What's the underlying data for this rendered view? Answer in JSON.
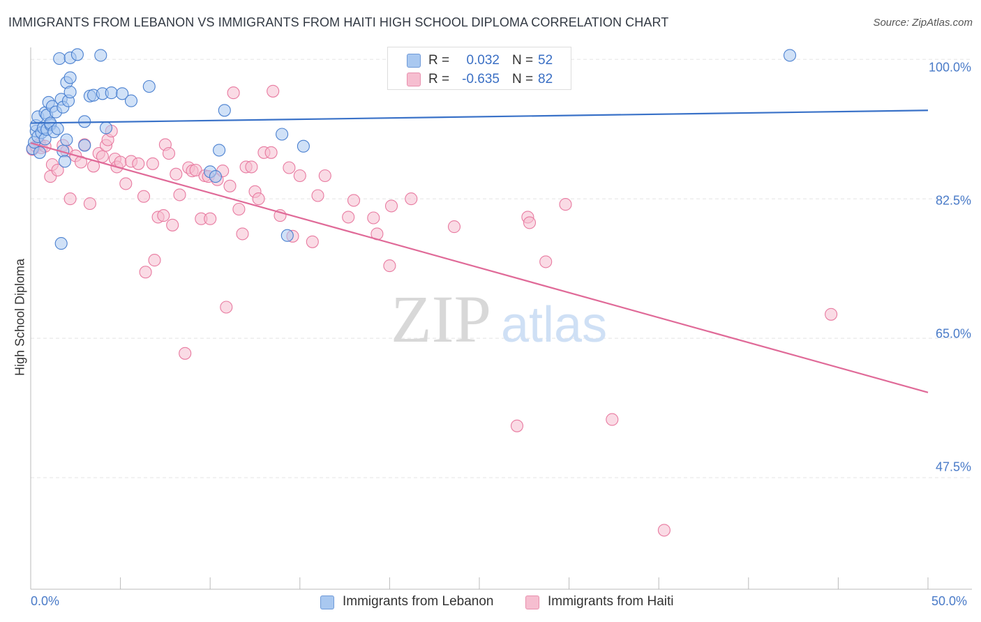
{
  "title": "IMMIGRANTS FROM LEBANON VS IMMIGRANTS FROM HAITI HIGH SCHOOL DIPLOMA CORRELATION CHART",
  "source": "Source: ZipAtlas.com",
  "watermark": {
    "zip": "ZIP",
    "atlas": "atlas"
  },
  "colors": {
    "lebanon_fill": "#a9c8f0",
    "lebanon_stroke": "#4a80d0",
    "lebanon_line": "#3a72c8",
    "haiti_fill": "#f6bed0",
    "haiti_stroke": "#e87aa0",
    "haiti_line": "#e06a98",
    "tick_label": "#4a7bc8",
    "grid": "#e4e4e4"
  },
  "legend_top": {
    "r_label": "R =",
    "n_label": "N =",
    "rows": [
      {
        "r": "0.032",
        "n": "52"
      },
      {
        "r": "-0.635",
        "n": "82"
      }
    ]
  },
  "legend_bottom": [
    "Immigrants from Lebanon",
    "Immigrants from Haiti"
  ],
  "chart_data": {
    "type": "scatter",
    "title": "IMMIGRANTS FROM LEBANON VS IMMIGRANTS FROM HAITI HIGH SCHOOL DIPLOMA CORRELATION CHART",
    "xlabel": "",
    "ylabel": "High School Diploma",
    "xlim": [
      0,
      50
    ],
    "ylim": [
      33.5,
      101.5
    ],
    "x_tick_labels": [
      "0.0%",
      "50.0%"
    ],
    "y_ticks": [
      100.0,
      82.5,
      65.0,
      47.5
    ],
    "y_tick_labels": [
      "100.0%",
      "82.5%",
      "65.0%",
      "47.5%"
    ],
    "grid": "horizontal dashed",
    "legend_position": "top-center",
    "series": [
      {
        "name": "Immigrants from Lebanon",
        "r": 0.032,
        "n": 52,
        "trend": [
          [
            0,
            92.0
          ],
          [
            50,
            93.6
          ]
        ],
        "points": [
          [
            0.1,
            88.8
          ],
          [
            0.2,
            89.6
          ],
          [
            0.3,
            91.0
          ],
          [
            0.3,
            91.7
          ],
          [
            0.4,
            90.3
          ],
          [
            0.4,
            92.8
          ],
          [
            0.5,
            88.3
          ],
          [
            0.6,
            90.8
          ],
          [
            0.7,
            91.4
          ],
          [
            0.8,
            93.3
          ],
          [
            0.8,
            90.0
          ],
          [
            0.9,
            91.2
          ],
          [
            0.9,
            93.0
          ],
          [
            1.0,
            94.6
          ],
          [
            1.1,
            91.8
          ],
          [
            1.1,
            92.0
          ],
          [
            1.2,
            94.1
          ],
          [
            1.3,
            90.9
          ],
          [
            1.4,
            93.4
          ],
          [
            1.5,
            91.3
          ],
          [
            1.7,
            95.0
          ],
          [
            1.8,
            94.0
          ],
          [
            1.7,
            76.9
          ],
          [
            1.8,
            88.5
          ],
          [
            1.9,
            87.2
          ],
          [
            2.0,
            97.1
          ],
          [
            2.0,
            89.9
          ],
          [
            2.1,
            94.8
          ],
          [
            2.2,
            97.7
          ],
          [
            2.2,
            95.9
          ],
          [
            1.6,
            100.1
          ],
          [
            2.2,
            100.2
          ],
          [
            2.6,
            100.6
          ],
          [
            3.0,
            89.2
          ],
          [
            3.0,
            92.2
          ],
          [
            3.3,
            95.4
          ],
          [
            3.5,
            95.5
          ],
          [
            3.9,
            100.5
          ],
          [
            4.0,
            95.7
          ],
          [
            4.2,
            91.4
          ],
          [
            4.5,
            95.8
          ],
          [
            5.1,
            95.7
          ],
          [
            5.6,
            94.8
          ],
          [
            6.6,
            96.6
          ],
          [
            10.0,
            85.9
          ],
          [
            10.3,
            85.3
          ],
          [
            10.5,
            88.6
          ],
          [
            10.8,
            93.6
          ],
          [
            14.0,
            90.6
          ],
          [
            14.3,
            77.9
          ],
          [
            15.2,
            89.1
          ],
          [
            42.3,
            100.5
          ]
        ]
      },
      {
        "name": "Immigrants from Haiti",
        "r": -0.635,
        "n": 82,
        "trend": [
          [
            0,
            89.5
          ],
          [
            50,
            58.2
          ]
        ],
        "points": [
          [
            0.1,
            88.7
          ],
          [
            0.3,
            89.1
          ],
          [
            0.5,
            89.4
          ],
          [
            0.6,
            88.9
          ],
          [
            0.8,
            89.1
          ],
          [
            1.1,
            85.3
          ],
          [
            1.2,
            86.8
          ],
          [
            1.5,
            86.1
          ],
          [
            1.8,
            89.2
          ],
          [
            2.0,
            88.5
          ],
          [
            2.2,
            82.5
          ],
          [
            2.5,
            87.9
          ],
          [
            2.8,
            87.1
          ],
          [
            3.0,
            89.3
          ],
          [
            3.3,
            81.9
          ],
          [
            3.5,
            86.6
          ],
          [
            3.8,
            88.2
          ],
          [
            4.0,
            87.8
          ],
          [
            4.2,
            89.2
          ],
          [
            4.3,
            89.9
          ],
          [
            4.5,
            91.0
          ],
          [
            4.7,
            87.5
          ],
          [
            4.8,
            86.5
          ],
          [
            5.0,
            87.1
          ],
          [
            5.3,
            84.4
          ],
          [
            5.6,
            87.2
          ],
          [
            6.0,
            86.9
          ],
          [
            6.3,
            82.8
          ],
          [
            6.4,
            73.3
          ],
          [
            6.8,
            86.9
          ],
          [
            6.9,
            74.8
          ],
          [
            7.1,
            80.2
          ],
          [
            7.4,
            80.4
          ],
          [
            7.5,
            89.3
          ],
          [
            7.7,
            88.2
          ],
          [
            7.9,
            79.2
          ],
          [
            8.1,
            85.6
          ],
          [
            8.3,
            83.0
          ],
          [
            8.6,
            63.1
          ],
          [
            8.8,
            86.4
          ],
          [
            9.0,
            86.0
          ],
          [
            9.2,
            86.1
          ],
          [
            9.5,
            80.0
          ],
          [
            9.7,
            85.4
          ],
          [
            9.9,
            85.3
          ],
          [
            10.0,
            80.0
          ],
          [
            10.4,
            84.9
          ],
          [
            10.7,
            86.0
          ],
          [
            10.9,
            68.9
          ],
          [
            11.1,
            84.1
          ],
          [
            11.3,
            95.8
          ],
          [
            11.6,
            81.2
          ],
          [
            11.8,
            78.1
          ],
          [
            12.0,
            86.5
          ],
          [
            12.3,
            86.5
          ],
          [
            12.5,
            83.4
          ],
          [
            12.7,
            82.5
          ],
          [
            13.0,
            88.3
          ],
          [
            13.4,
            88.3
          ],
          [
            13.5,
            96.0
          ],
          [
            13.9,
            80.4
          ],
          [
            14.4,
            86.4
          ],
          [
            14.6,
            77.8
          ],
          [
            15.0,
            85.4
          ],
          [
            15.7,
            77.1
          ],
          [
            16.0,
            82.9
          ],
          [
            16.4,
            85.4
          ],
          [
            17.7,
            80.2
          ],
          [
            18.0,
            82.3
          ],
          [
            19.1,
            80.1
          ],
          [
            19.3,
            78.1
          ],
          [
            20.0,
            74.1
          ],
          [
            20.1,
            81.6
          ],
          [
            21.2,
            82.5
          ],
          [
            23.6,
            79.0
          ],
          [
            27.1,
            54.0
          ],
          [
            27.7,
            80.2
          ],
          [
            27.8,
            79.5
          ],
          [
            28.7,
            74.6
          ],
          [
            29.8,
            81.8
          ],
          [
            32.4,
            54.8
          ],
          [
            35.3,
            40.9
          ],
          [
            44.6,
            68.0
          ]
        ]
      }
    ]
  }
}
